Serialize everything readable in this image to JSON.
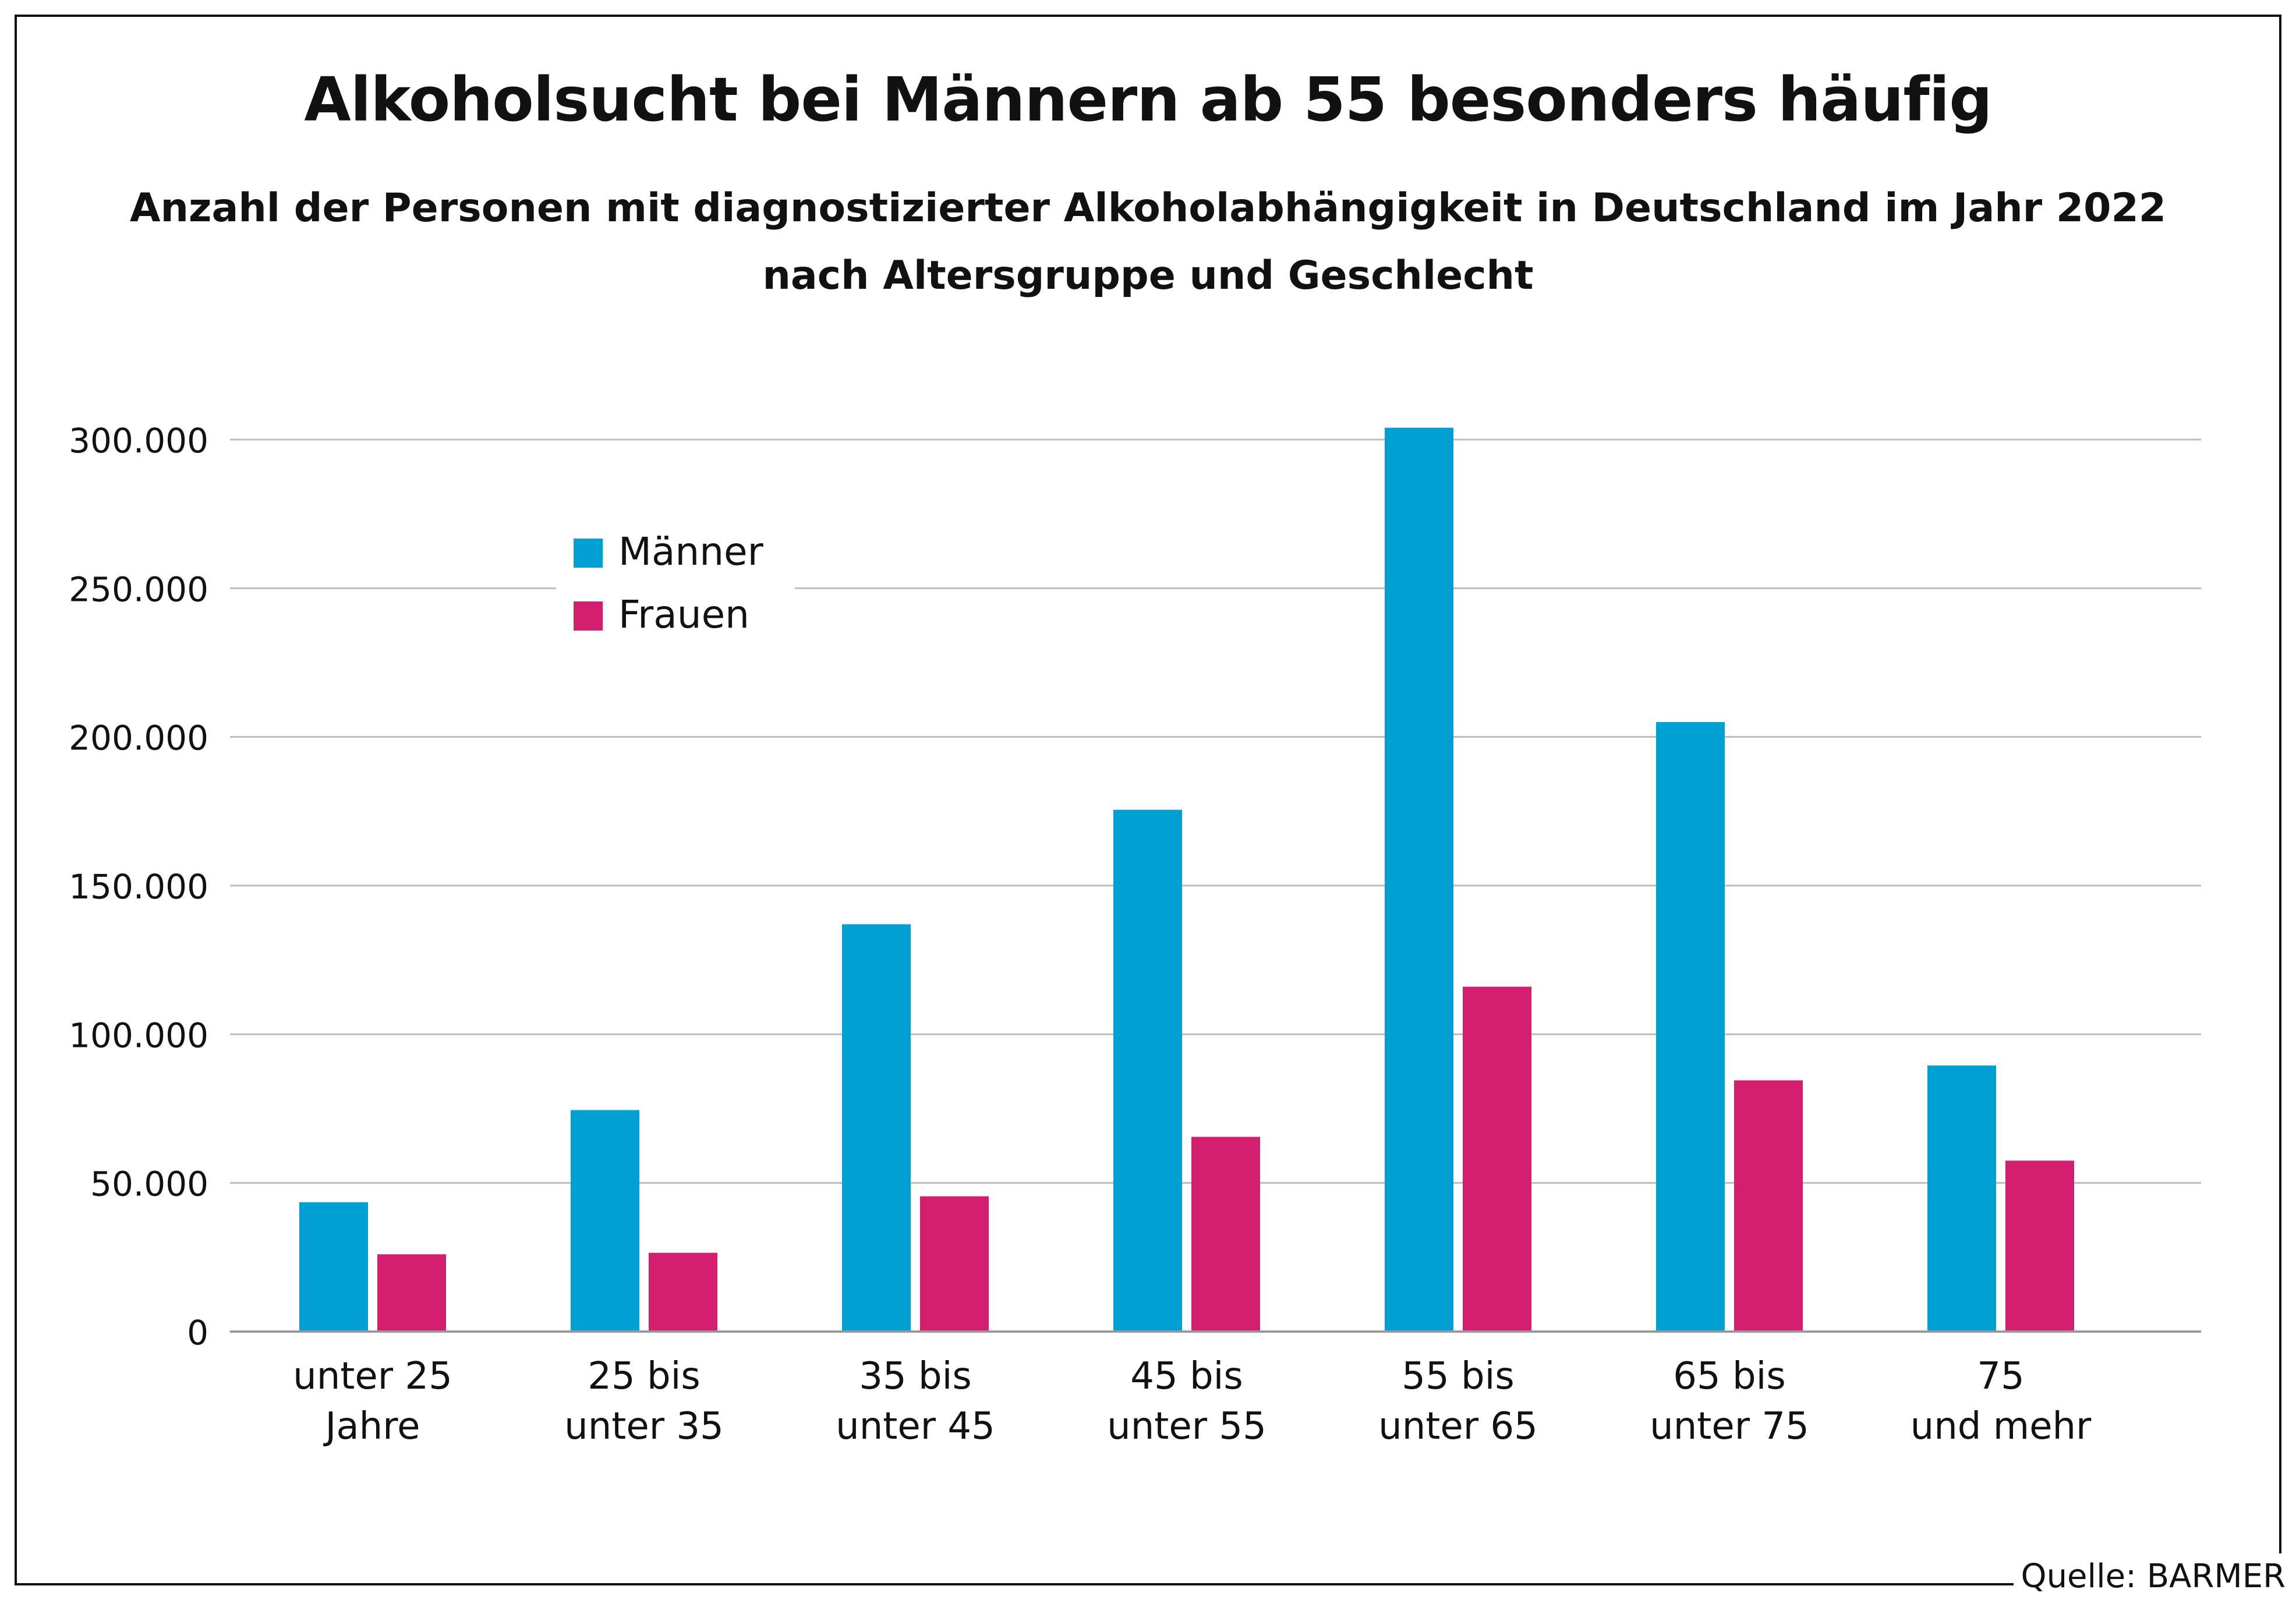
{
  "chart_data": {
    "type": "bar",
    "title": "Alkoholsucht bei Männern ab 55 besonders häufig",
    "subtitle_lines": [
      "Anzahl der Personen mit diagnostizierter Alkoholabhängigkeit in Deutschland im Jahr 2022",
      "nach Altersgruppe und Geschlecht"
    ],
    "categories": [
      [
        "unter 25",
        "Jahre"
      ],
      [
        "25 bis",
        "unter 35"
      ],
      [
        "35 bis",
        "unter 45"
      ],
      [
        "45 bis",
        "unter 55"
      ],
      [
        "55 bis",
        "unter 65"
      ],
      [
        "65 bis",
        "unter 75"
      ],
      [
        "75",
        "und mehr"
      ]
    ],
    "series": [
      {
        "name": "Männer",
        "color": "#00a0d2",
        "values": [
          43500,
          74500,
          137000,
          175500,
          304000,
          205000,
          89500
        ]
      },
      {
        "name": "Frauen",
        "color": "#d31f6e",
        "values": [
          26000,
          26500,
          45500,
          65500,
          116000,
          84500,
          57500
        ]
      }
    ],
    "y_ticks": [
      0,
      50000,
      100000,
      150000,
      200000,
      250000,
      300000
    ],
    "y_tick_labels": [
      "0",
      "50.000",
      "100.000",
      "150.000",
      "200.000",
      "250.000",
      "300.000"
    ],
    "ylim": [
      0,
      300000
    ],
    "grid": true,
    "legend_position": "top-left",
    "source": "Quelle: BARMER"
  }
}
